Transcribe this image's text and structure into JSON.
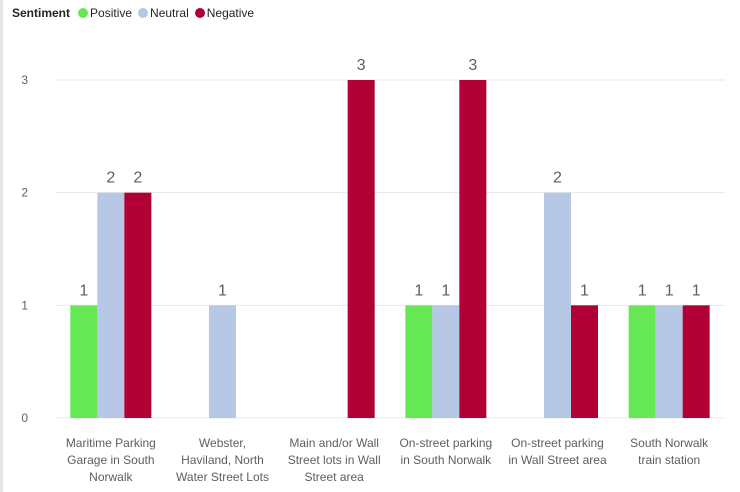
{
  "legend": {
    "title": "Sentiment",
    "items": [
      {
        "label": "Positive",
        "color": "#66e855"
      },
      {
        "label": "Neutral",
        "color": "#b7c7e6"
      },
      {
        "label": "Negative",
        "color": "#b00035"
      }
    ]
  },
  "chart_data": {
    "type": "bar",
    "categories": [
      [
        "Maritime Parking",
        "Garage in South",
        "Norwalk"
      ],
      [
        "Webster,",
        "Haviland, North",
        "Water Street Lots"
      ],
      [
        "Main and/or Wall",
        "Street lots in Wall",
        "Street area"
      ],
      [
        "On-street parking",
        "in South Norwalk"
      ],
      [
        "On-street parking",
        "in Wall Street area"
      ],
      [
        "South Norwalk",
        "train station"
      ]
    ],
    "series": [
      {
        "name": "Positive",
        "color": "#66e855",
        "values": [
          1,
          null,
          null,
          1,
          null,
          1
        ]
      },
      {
        "name": "Neutral",
        "color": "#b7c7e6",
        "values": [
          2,
          1,
          null,
          1,
          2,
          1
        ]
      },
      {
        "name": "Negative",
        "color": "#b00035",
        "values": [
          2,
          null,
          3,
          3,
          1,
          1
        ]
      }
    ],
    "yticks": [
      0,
      1,
      2,
      3
    ],
    "ylim": [
      0,
      3
    ],
    "grid": true,
    "legend_position": "top-left"
  }
}
